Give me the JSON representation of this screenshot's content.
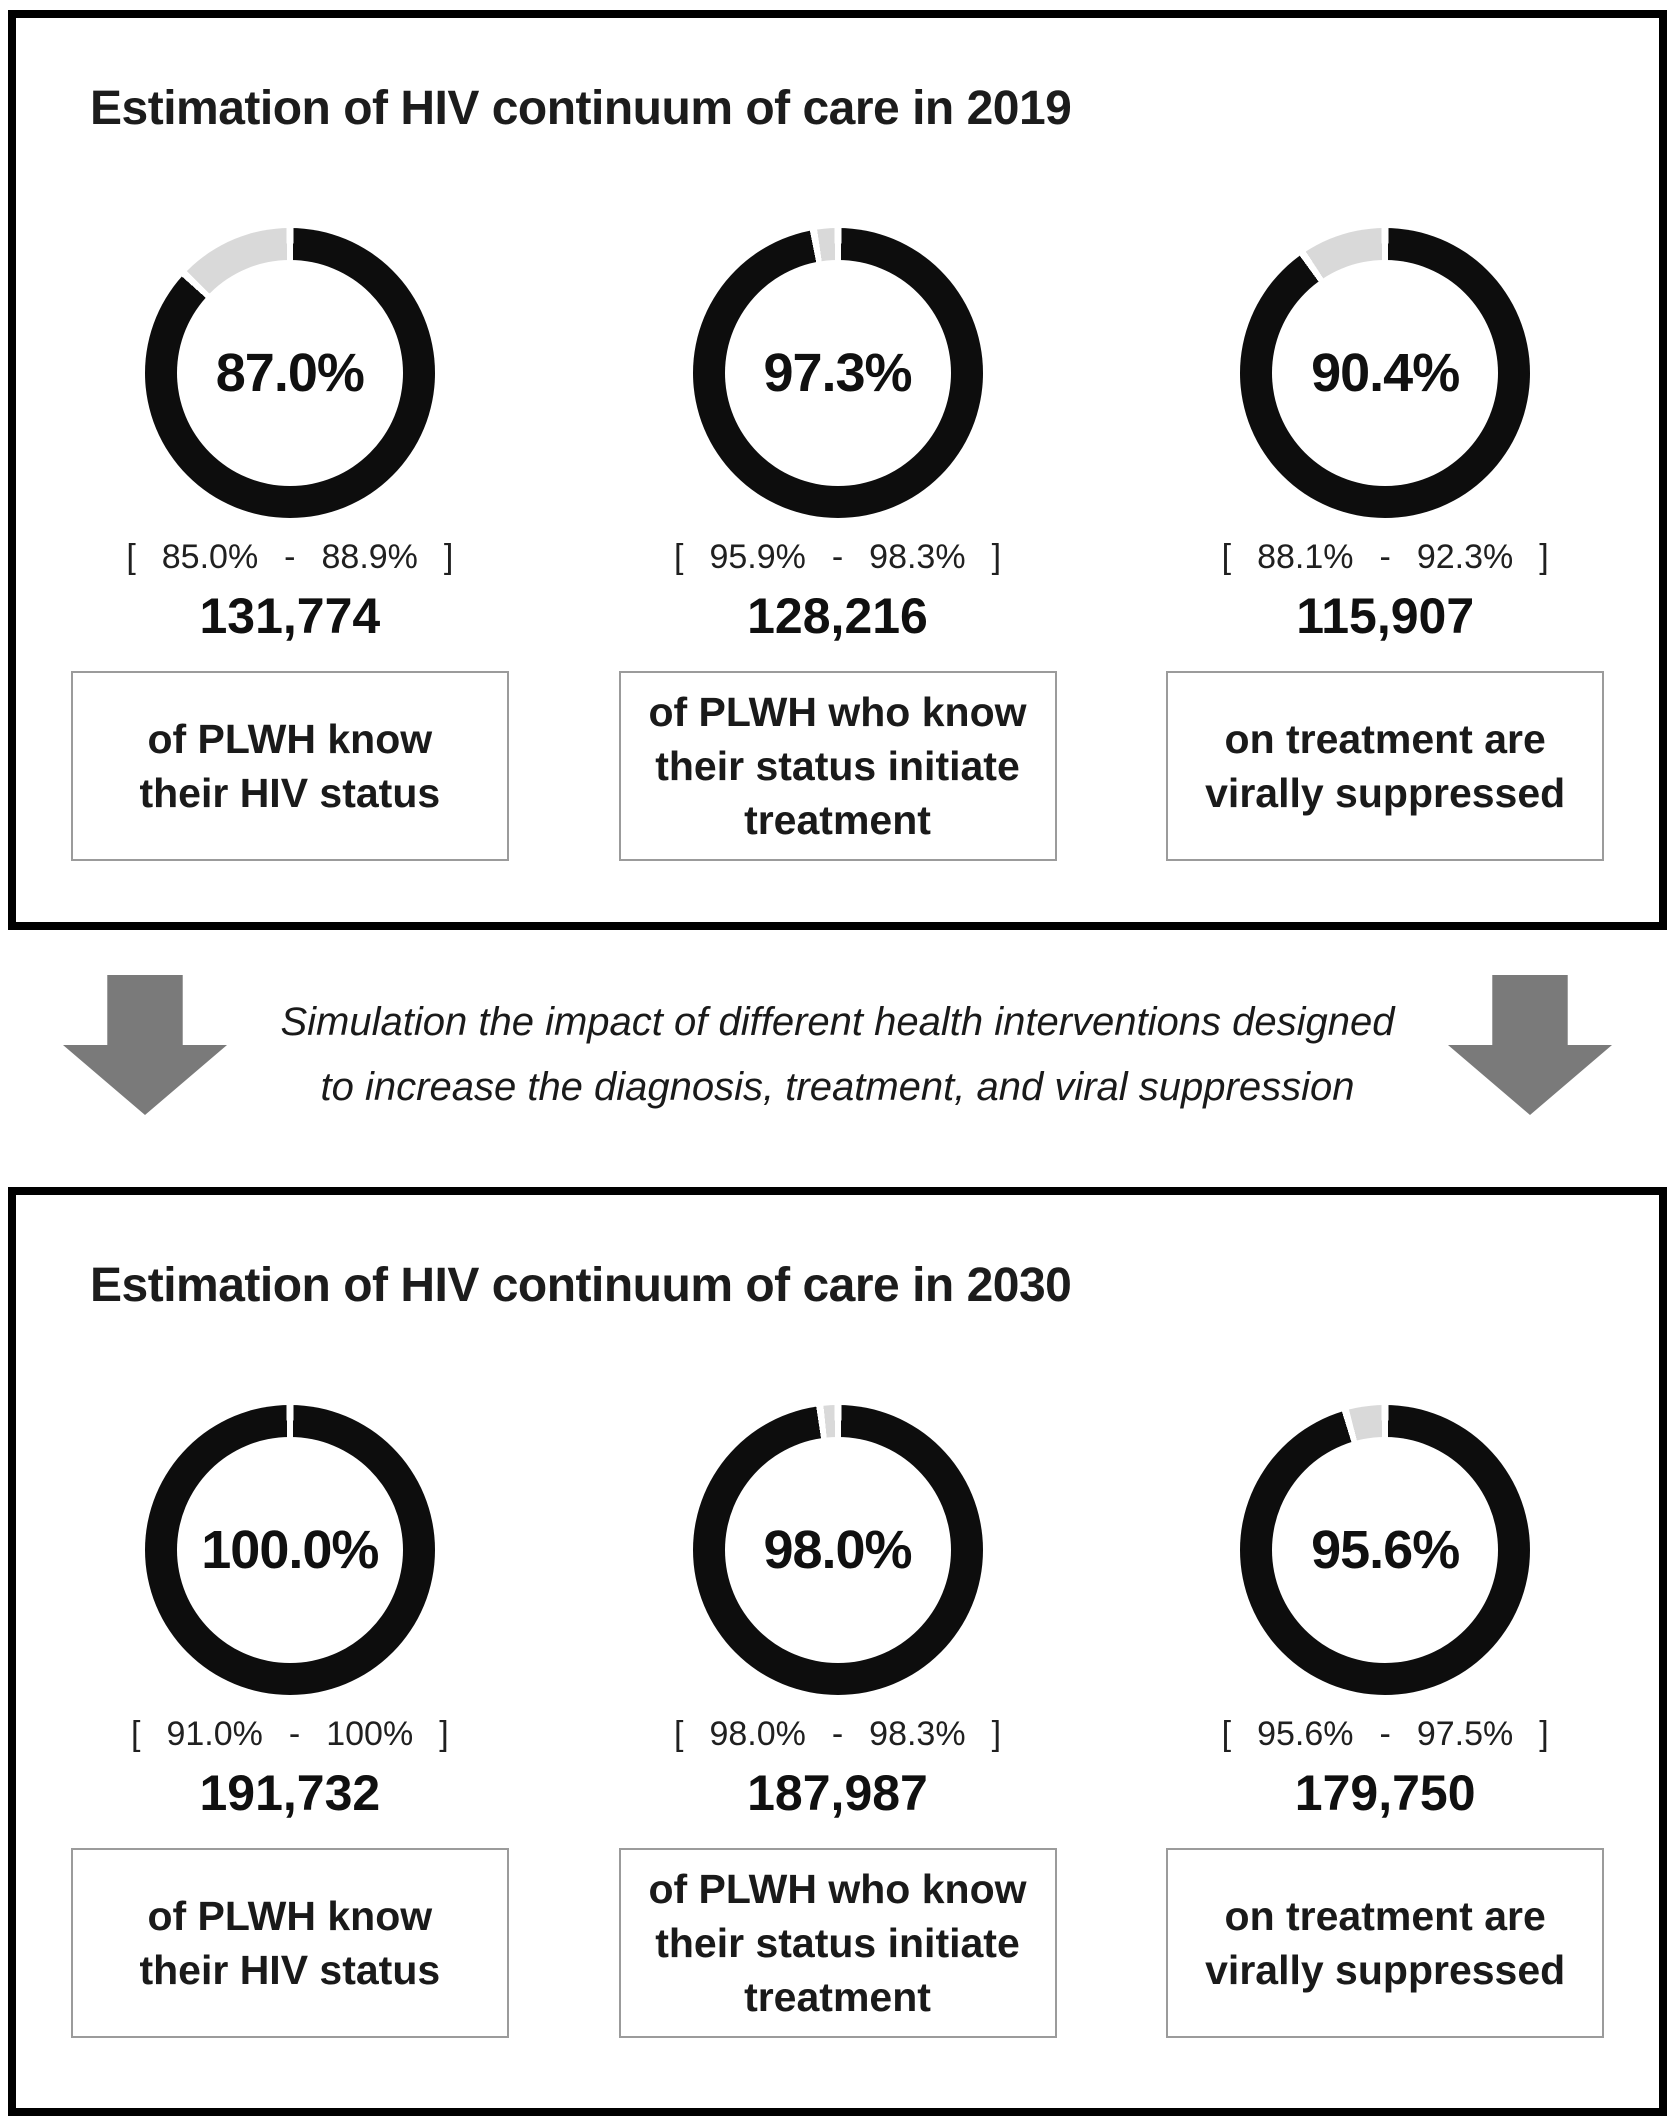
{
  "colors": {
    "ring_black": "#0d0d0d",
    "ring_gray": "#d9d9d9",
    "arrow_gray": "#7a7a7a",
    "box_border": "#9b9b9b",
    "panel_border": "#000000",
    "text_dark": "#1a1a1a"
  },
  "ci_symbols": {
    "open": "[",
    "dash": "-",
    "close": "]"
  },
  "connector": {
    "line1": "Simulation the impact of different health interventions designed",
    "line2": "to increase the diagnosis, treatment, and viral suppression"
  },
  "panels": [
    {
      "title": "Estimation of HIV continuum of care in 2019",
      "metrics": [
        {
          "percent": "87.0%",
          "ci_low": "85.0%",
          "ci_high": "88.9%",
          "count": "131,774",
          "label": "of PLWH know their HIV status"
        },
        {
          "percent": "97.3%",
          "ci_low": "95.9%",
          "ci_high": "98.3%",
          "count": "128,216",
          "label": "of PLWH who know their status initiate treatment"
        },
        {
          "percent": "90.4%",
          "ci_low": "88.1%",
          "ci_high": "92.3%",
          "count": "115,907",
          "label": "on treatment are virally suppressed"
        }
      ]
    },
    {
      "title": "Estimation of HIV continuum of care in 2030",
      "metrics": [
        {
          "percent": "100.0%",
          "ci_low": "91.0%",
          "ci_high": "100%",
          "count": "191,732",
          "label": "of PLWH know their HIV status"
        },
        {
          "percent": "98.0%",
          "ci_low": "98.0%",
          "ci_high": "98.3%",
          "count": "187,987",
          "label": "of PLWH who know their status initiate treatment"
        },
        {
          "percent": "95.6%",
          "ci_low": "95.6%",
          "ci_high": "97.5%",
          "count": "179,750",
          "label": "on treatment are virally suppressed"
        }
      ]
    }
  ],
  "chart_data": [
    {
      "type": "pie",
      "variant": "donut",
      "title": "Estimation of HIV continuum of care in 2019",
      "legend_position": "none",
      "series": [
        {
          "name": "of PLWH know their HIV status",
          "value_pct": 87.0,
          "remainder_pct": 13.0,
          "ci_pct": [
            85.0,
            88.9
          ],
          "count": 131774
        },
        {
          "name": "of PLWH who know their status initiate treatment",
          "value_pct": 97.3,
          "remainder_pct": 2.7,
          "ci_pct": [
            95.9,
            98.3
          ],
          "count": 128216
        },
        {
          "name": "on treatment are virally suppressed",
          "value_pct": 90.4,
          "remainder_pct": 9.6,
          "ci_pct": [
            88.1,
            92.3
          ],
          "count": 115907
        }
      ]
    },
    {
      "type": "pie",
      "variant": "donut",
      "title": "Estimation of HIV continuum of care in 2030",
      "legend_position": "none",
      "series": [
        {
          "name": "of PLWH know their HIV status",
          "value_pct": 100.0,
          "remainder_pct": 0.0,
          "ci_pct": [
            91.0,
            100.0
          ],
          "count": 191732
        },
        {
          "name": "of PLWH who know their status initiate treatment",
          "value_pct": 98.0,
          "remainder_pct": 2.0,
          "ci_pct": [
            98.0,
            98.3
          ],
          "count": 187987
        },
        {
          "name": "on treatment are virally suppressed",
          "value_pct": 95.6,
          "remainder_pct": 4.4,
          "ci_pct": [
            95.6,
            97.5
          ],
          "count": 179750
        }
      ]
    }
  ]
}
